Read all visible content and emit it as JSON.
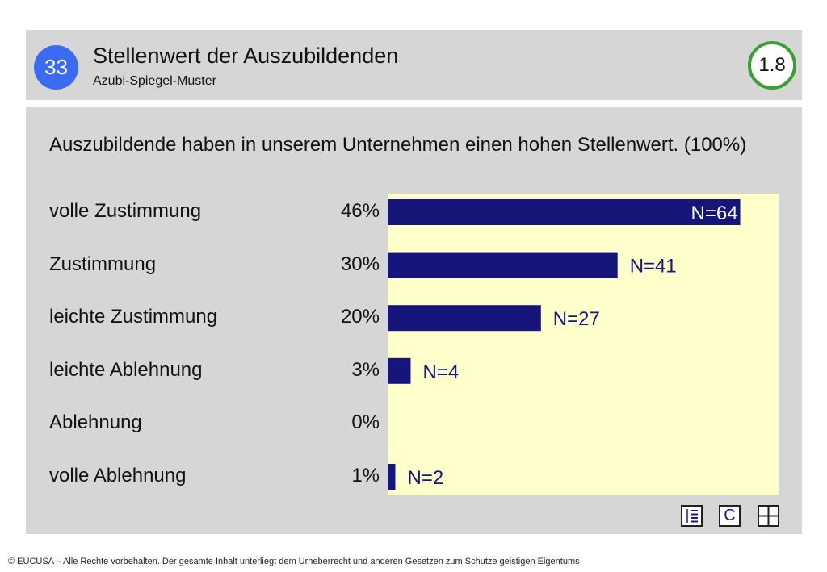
{
  "header": {
    "page_number": "33",
    "title": "Stellenwert der Auszubildenden",
    "subtitle": "Azubi-Spiegel-Muster",
    "version": "1.8"
  },
  "question": "Auszubildende haben in unserem Unternehmen einen hohen Stellenwert. (100%)",
  "chart_data": {
    "type": "bar",
    "orientation": "horizontal",
    "title": "Auszubildende haben in unserem Unternehmen einen hohen Stellenwert. (100%)",
    "categories": [
      "volle Zustimmung",
      "Zustimmung",
      "leichte Zustimmung",
      "leichte Ablehnung",
      "Ablehnung",
      "volle Ablehnung"
    ],
    "values": [
      46,
      30,
      20,
      3,
      0,
      1
    ],
    "value_labels": [
      "46%",
      "30%",
      "20%",
      "3%",
      "0%",
      "1%"
    ],
    "counts": [
      "N=64",
      "N=41",
      "N=27",
      "N=4",
      "",
      "N=2"
    ],
    "unit": "%",
    "xlim": [
      0,
      51
    ],
    "bar_color": "#16167a",
    "plot_background": "#ffffcc",
    "grid": false
  },
  "toolbar": {
    "icons": [
      "list-icon",
      "c-icon",
      "grid-icon"
    ],
    "c_label": "C"
  },
  "footer": "© EUCUSA – Alle Rechte vorbehalten. Der gesamte Inhalt unterliegt dem Urheberrecht und anderen Gesetzen zum Schutze geistigen Eigentums"
}
